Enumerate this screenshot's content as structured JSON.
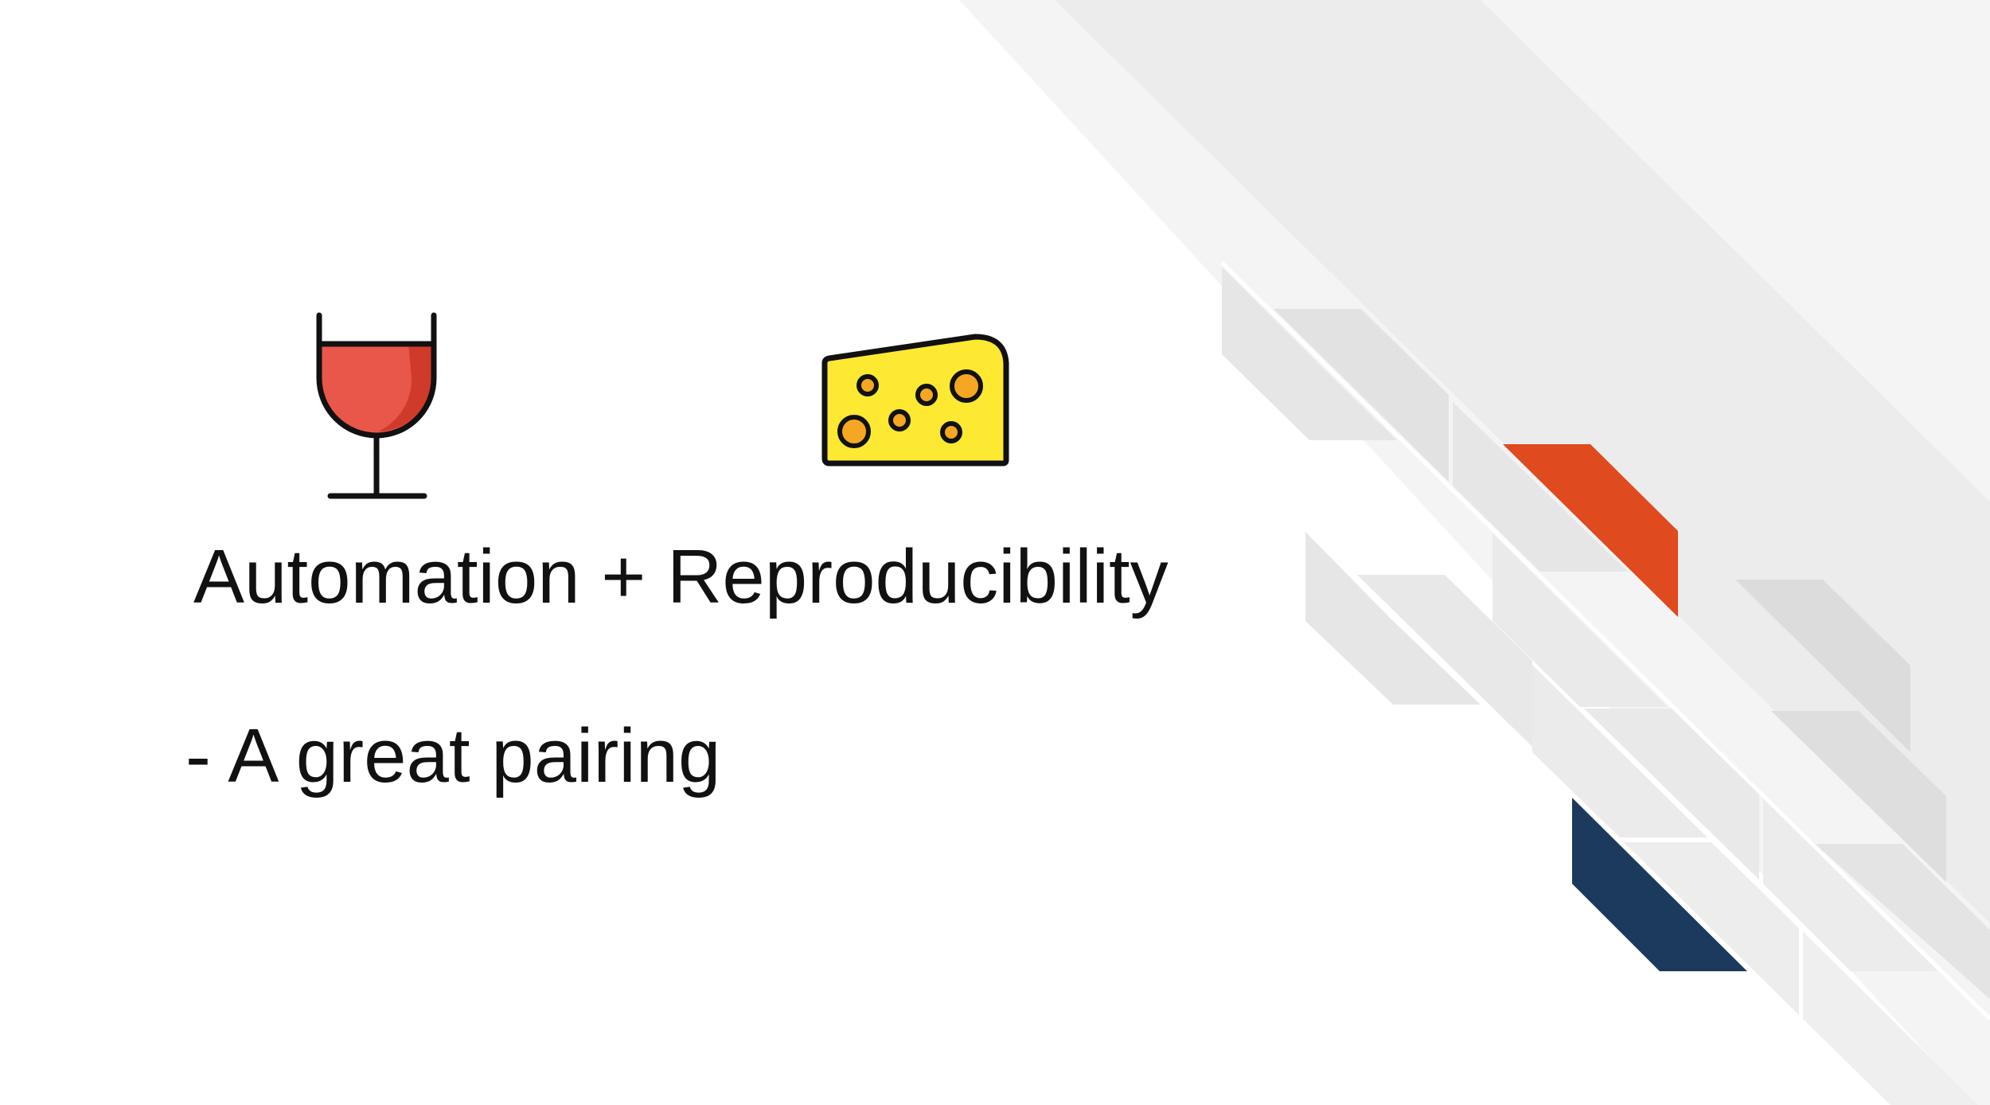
{
  "slide": {
    "title": "Automation + Reproducibility",
    "subtitle": "- A great pairing"
  },
  "icons": {
    "left": "wine-glass-icon",
    "right": "cheese-icon"
  },
  "colors": {
    "background": "#ffffff",
    "text": "#111111",
    "wine": "#e8574a",
    "wine_shade": "#d03a2a",
    "cheese": "#fde832",
    "cheese_holes": "#f5a623",
    "outline": "#111111",
    "accent_orange": "#df4a1e",
    "accent_navy": "#1c3a5e",
    "decor_gray_light": "#f4f4f4",
    "decor_gray_mid": "#ececec",
    "decor_gray_dark": "#dcdcdc"
  }
}
